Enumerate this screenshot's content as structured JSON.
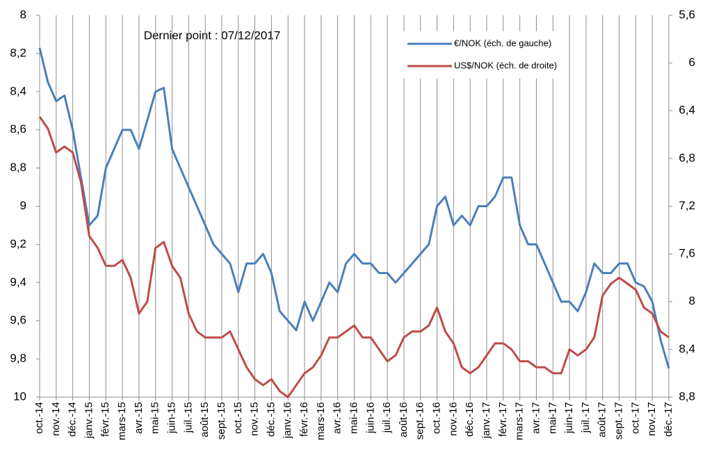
{
  "chart_data": {
    "type": "line",
    "annotation": "Dernier point : 07/12/2017",
    "categories": [
      "oct.-14",
      null,
      "nov.-14",
      null,
      "déc.-14",
      null,
      "janv.-15",
      null,
      "févr.-15",
      null,
      "mars-15",
      null,
      "avr.-15",
      null,
      "mai-15",
      null,
      "juin-15",
      null,
      "juil.-15",
      null,
      "août-15",
      null,
      "sept.-15",
      null,
      "oct.-15",
      null,
      "nov.-15",
      null,
      "déc.-15",
      null,
      "janv.-16",
      null,
      "févr.-16",
      null,
      "mars-16",
      null,
      "avr.-16",
      null,
      "mai-16",
      null,
      "juin-16",
      null,
      "juil.-16",
      null,
      "août-16",
      null,
      "sept.-16",
      null,
      "oct.-16",
      null,
      "nov.-16",
      null,
      "déc.-16",
      null,
      "janv.-17",
      null,
      "févr.-17",
      null,
      "mars-17",
      null,
      "avr.-17",
      null,
      "mai-17",
      null,
      "juin-17",
      null,
      "juil.-17",
      null,
      "août-17",
      null,
      "sept.-17",
      null,
      "oct.-17",
      null,
      "nov.-17",
      null,
      "déc.-17"
    ],
    "series": [
      {
        "name": "€/NOK (éch. de gauche)",
        "color": "#4a7ebb",
        "axis": "y",
        "values": [
          8.17,
          8.35,
          8.45,
          8.42,
          8.6,
          8.85,
          9.1,
          9.05,
          8.8,
          8.7,
          8.6,
          8.6,
          8.7,
          8.55,
          8.4,
          8.38,
          8.7,
          8.8,
          8.9,
          9.0,
          9.1,
          9.2,
          9.25,
          9.3,
          9.45,
          9.3,
          9.3,
          9.25,
          9.35,
          9.55,
          9.6,
          9.65,
          9.5,
          9.6,
          9.5,
          9.4,
          9.45,
          9.3,
          9.25,
          9.3,
          9.3,
          9.35,
          9.35,
          9.4,
          9.35,
          9.3,
          9.25,
          9.2,
          9.0,
          8.95,
          9.1,
          9.05,
          9.1,
          9.0,
          9.0,
          8.95,
          8.85,
          8.85,
          9.1,
          9.2,
          9.2,
          9.3,
          9.4,
          9.5,
          9.5,
          9.55,
          9.45,
          9.3,
          9.35,
          9.35,
          9.3,
          9.3,
          9.4,
          9.42,
          9.5,
          9.7,
          9.85
        ]
      },
      {
        "name": "US$/NOK (éch. de droite)",
        "color": "#be4b48",
        "axis": "y2",
        "values": [
          6.45,
          6.55,
          6.75,
          6.7,
          6.75,
          7.0,
          7.45,
          7.55,
          7.7,
          7.7,
          7.65,
          7.8,
          8.1,
          8.0,
          7.55,
          7.5,
          7.7,
          7.8,
          8.1,
          8.25,
          8.3,
          8.3,
          8.3,
          8.25,
          8.4,
          8.55,
          8.65,
          8.7,
          8.65,
          8.75,
          8.8,
          8.7,
          8.6,
          8.55,
          8.45,
          8.3,
          8.3,
          8.25,
          8.2,
          8.3,
          8.3,
          8.4,
          8.5,
          8.45,
          8.3,
          8.25,
          8.25,
          8.2,
          8.05,
          8.25,
          8.35,
          8.55,
          8.6,
          8.55,
          8.45,
          8.35,
          8.35,
          8.4,
          8.5,
          8.5,
          8.55,
          8.55,
          8.6,
          8.6,
          8.4,
          8.45,
          8.4,
          8.3,
          7.95,
          7.85,
          7.8,
          7.85,
          7.9,
          8.05,
          8.1,
          8.25,
          8.3
        ]
      }
    ],
    "ylim": [
      8,
      10
    ],
    "y_inverted": true,
    "yticks": [
      8,
      {
        "value": 8.2,
        "label": "8,2"
      },
      {
        "value": 8.4,
        "label": "8,4"
      },
      {
        "value": 8.6,
        "label": "8,6"
      },
      {
        "value": 8.8,
        "label": "8,8"
      },
      9,
      {
        "value": 9.2,
        "label": "9,2"
      },
      {
        "value": 9.4,
        "label": "9,4"
      },
      {
        "value": 9.6,
        "label": "9,6"
      },
      {
        "value": 9.8,
        "label": "9,8"
      },
      10
    ],
    "y2lim": [
      5.6,
      8.8
    ],
    "y2_inverted": true,
    "y2ticks": [
      {
        "value": 5.6,
        "label": "5,6"
      },
      6,
      {
        "value": 6.4,
        "label": "6,4"
      },
      {
        "value": 6.8,
        "label": "6,8"
      },
      {
        "value": 7.2,
        "label": "7,2"
      },
      {
        "value": 7.6,
        "label": "7,6"
      },
      8,
      {
        "value": 8.4,
        "label": "8,4"
      },
      {
        "value": 8.8,
        "label": "8,8"
      }
    ],
    "grid": "x",
    "legend": "top-right"
  }
}
